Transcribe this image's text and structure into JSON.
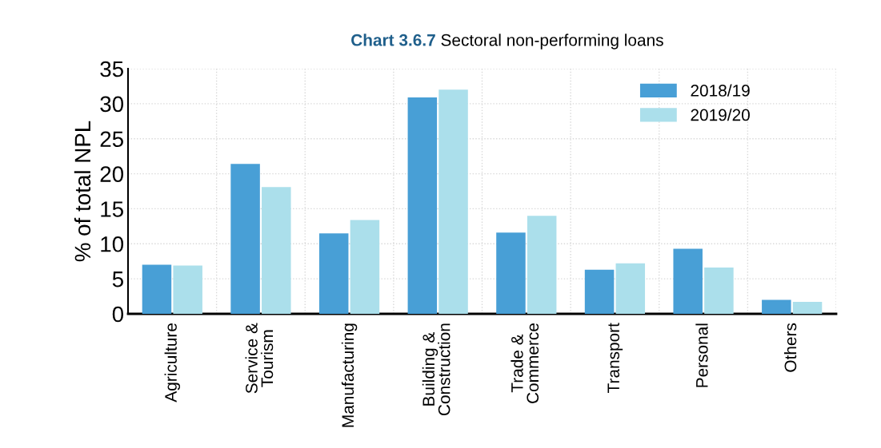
{
  "chart_data": {
    "type": "bar",
    "title": "Chart 3.6.7 Sectoral non-performing loans",
    "ylabel": "% of total NPL",
    "categories": [
      "Agriculture",
      "Service &\nTourism",
      "Manufacturing",
      "Building &\nConstruction",
      "Trade &\nCommerce",
      "Transport",
      "Personal",
      "Others"
    ],
    "series": [
      {
        "name": "2018/19",
        "color": "#489fd6",
        "values": [
          7.0,
          21.4,
          11.5,
          30.9,
          11.6,
          6.3,
          9.3,
          2.0
        ]
      },
      {
        "name": "2019/20",
        "color": "#abdfeb",
        "values": [
          6.9,
          18.1,
          13.4,
          32.0,
          14.0,
          7.2,
          6.6,
          1.7
        ]
      }
    ],
    "ylim": [
      0,
      35
    ],
    "yticks": [
      0,
      5,
      10,
      15,
      20,
      25,
      30,
      35
    ],
    "grid": true,
    "legend": "top right"
  }
}
